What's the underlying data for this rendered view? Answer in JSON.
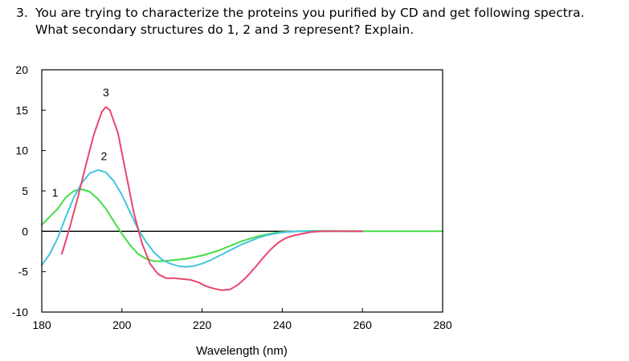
{
  "question": {
    "number": "3.",
    "line1": "You are trying to characterize the proteins you purified by CD and get following spectra.",
    "line2": "What secondary structures do 1, 2 and 3 represent? Explain."
  },
  "chart_data": {
    "type": "line",
    "title": "",
    "xlabel": "Wavelength (nm)",
    "ylabel": "",
    "xlim": [
      180,
      280
    ],
    "ylim": [
      -10,
      20
    ],
    "xticks": [
      180,
      200,
      220,
      240,
      260,
      280
    ],
    "yticks": [
      -10,
      -5,
      0,
      5,
      10,
      15,
      20
    ],
    "zero_line": true,
    "grid": false,
    "series": [
      {
        "name": "1",
        "color": "#44dd44",
        "x": [
          180,
          182,
          184,
          186,
          188,
          190,
          192,
          194,
          196,
          198,
          200,
          202,
          204,
          206,
          208,
          210,
          212,
          214,
          216,
          218,
          220,
          222,
          224,
          226,
          228,
          230,
          232,
          234,
          236,
          238,
          240,
          244,
          248,
          252,
          256,
          260,
          265,
          270,
          275,
          280
        ],
        "y": [
          0.8,
          1.8,
          2.8,
          4.2,
          5.0,
          5.2,
          4.9,
          4.0,
          2.8,
          1.2,
          -0.3,
          -1.7,
          -2.8,
          -3.4,
          -3.7,
          -3.7,
          -3.6,
          -3.5,
          -3.4,
          -3.2,
          -3.0,
          -2.7,
          -2.4,
          -2.0,
          -1.6,
          -1.2,
          -0.9,
          -0.6,
          -0.4,
          -0.2,
          -0.1,
          0,
          0.05,
          0.05,
          0,
          0,
          0,
          0,
          0,
          0
        ]
      },
      {
        "name": "2",
        "color": "#44c4dd",
        "x": [
          180,
          182,
          184,
          186,
          188,
          190,
          192,
          194,
          196,
          198,
          200,
          202,
          204,
          206,
          208,
          210,
          212,
          214,
          216,
          218,
          220,
          222,
          224,
          226,
          228,
          230,
          232,
          234,
          236,
          238,
          240,
          244,
          248,
          252,
          256,
          260
        ],
        "y": [
          -4.2,
          -2.8,
          -0.8,
          1.8,
          4.2,
          6.0,
          7.2,
          7.6,
          7.3,
          6.2,
          4.5,
          2.4,
          0.3,
          -1.3,
          -2.6,
          -3.5,
          -4.0,
          -4.3,
          -4.4,
          -4.3,
          -4.0,
          -3.6,
          -3.1,
          -2.6,
          -2.1,
          -1.6,
          -1.2,
          -0.8,
          -0.5,
          -0.3,
          -0.15,
          0,
          0,
          0,
          0,
          0
        ]
      },
      {
        "name": "3",
        "color": "#e8466e",
        "x": [
          185,
          187,
          189,
          191,
          193,
          195,
          196,
          197,
          199,
          201,
          203,
          205,
          207,
          209,
          211,
          213,
          215,
          217,
          219,
          221,
          223,
          225,
          227,
          229,
          231,
          233,
          235,
          237,
          239,
          241,
          243,
          245,
          247,
          250,
          255,
          260
        ],
        "y": [
          -2.8,
          0.5,
          4.2,
          8.2,
          12.0,
          14.8,
          15.4,
          15.0,
          12.2,
          7.2,
          2.2,
          -1.5,
          -4.0,
          -5.3,
          -5.8,
          -5.8,
          -5.9,
          -6.0,
          -6.3,
          -6.8,
          -7.1,
          -7.3,
          -7.2,
          -6.6,
          -5.7,
          -4.6,
          -3.4,
          -2.3,
          -1.4,
          -0.8,
          -0.5,
          -0.3,
          -0.1,
          0,
          0,
          0
        ]
      }
    ],
    "annotations": [
      {
        "text": "1",
        "x": 183.3,
        "y": 4.8
      },
      {
        "text": "2",
        "x": 195.5,
        "y": 9.3
      },
      {
        "text": "3",
        "x": 196.0,
        "y": 17.2
      }
    ]
  }
}
